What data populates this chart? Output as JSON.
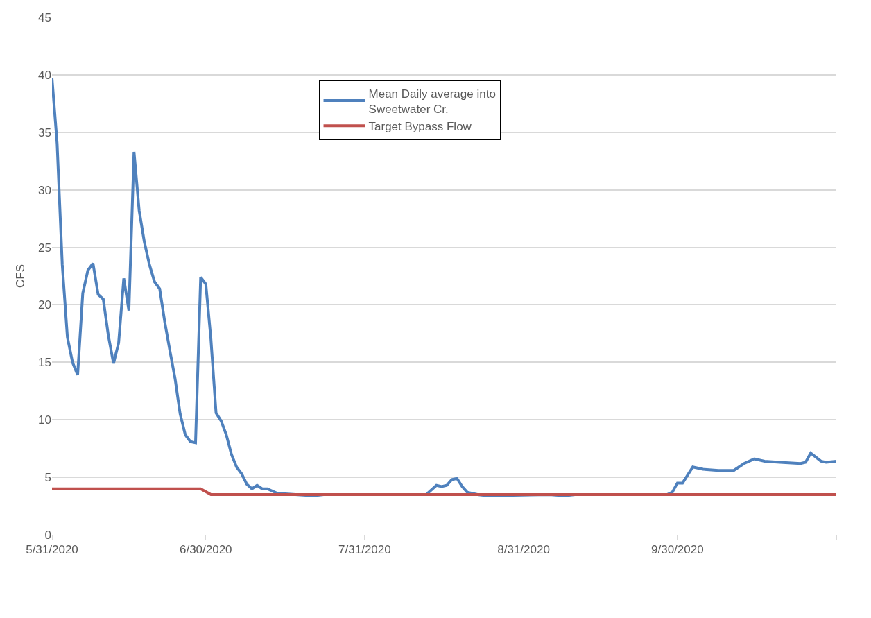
{
  "chart_data": {
    "type": "line",
    "ylabel": "CFS",
    "xlim": [
      "2020-05-31",
      "2020-10-31"
    ],
    "xticks": [
      {
        "value": "2020-05-31",
        "label": "5/31/2020"
      },
      {
        "value": "2020-06-30",
        "label": "6/30/2020"
      },
      {
        "value": "2020-07-31",
        "label": "7/31/2020"
      },
      {
        "value": "2020-08-31",
        "label": "8/31/2020"
      },
      {
        "value": "2020-09-30",
        "label": "9/30/2020"
      },
      {
        "value": "2020-10-31",
        "label": null
      }
    ],
    "ylim": [
      0,
      45
    ],
    "yticks": [
      0,
      5,
      10,
      15,
      20,
      25,
      30,
      35,
      40,
      45
    ],
    "grid": "y",
    "legend": "top",
    "marker": "none",
    "line_style": "solid",
    "series": [
      {
        "name": "Mean Daily average into Sweetwater Cr.",
        "color": "#4f81bd",
        "x": [
          "2020-05-31",
          "2020-06-01",
          "2020-06-02",
          "2020-06-03",
          "2020-06-04",
          "2020-06-05",
          "2020-06-06",
          "2020-06-07",
          "2020-06-08",
          "2020-06-09",
          "2020-06-10",
          "2020-06-11",
          "2020-06-12",
          "2020-06-13",
          "2020-06-14",
          "2020-06-15",
          "2020-06-16",
          "2020-06-17",
          "2020-06-18",
          "2020-06-19",
          "2020-06-20",
          "2020-06-21",
          "2020-06-22",
          "2020-06-23",
          "2020-06-24",
          "2020-06-25",
          "2020-06-26",
          "2020-06-27",
          "2020-06-28",
          "2020-06-29",
          "2020-06-30",
          "2020-07-01",
          "2020-07-02",
          "2020-07-03",
          "2020-07-04",
          "2020-07-05",
          "2020-07-06",
          "2020-07-07",
          "2020-07-08",
          "2020-07-09",
          "2020-07-10",
          "2020-07-11",
          "2020-07-12",
          "2020-07-13",
          "2020-07-14",
          "2020-07-18",
          "2020-07-21",
          "2020-07-23",
          "2020-08-12",
          "2020-08-14",
          "2020-08-15",
          "2020-08-16",
          "2020-08-17",
          "2020-08-18",
          "2020-08-19",
          "2020-08-20",
          "2020-08-22",
          "2020-08-24",
          "2020-08-26",
          "2020-08-28",
          "2020-09-05",
          "2020-09-08",
          "2020-09-10",
          "2020-09-28",
          "2020-09-29",
          "2020-09-30",
          "2020-10-01",
          "2020-10-03",
          "2020-10-05",
          "2020-10-08",
          "2020-10-11",
          "2020-10-13",
          "2020-10-15",
          "2020-10-17",
          "2020-10-20",
          "2020-10-24",
          "2020-10-25",
          "2020-10-26",
          "2020-10-28",
          "2020-10-29",
          "2020-10-31"
        ],
        "values": [
          39.7,
          34,
          23.5,
          17.2,
          15,
          13.9,
          21,
          23,
          23.6,
          20.9,
          20.5,
          17.3,
          14.9,
          16.7,
          22.3,
          19.5,
          33.3,
          28.2,
          25.5,
          23.5,
          22,
          21.4,
          18.5,
          16,
          13.6,
          10.5,
          8.7,
          8.1,
          8,
          22.4,
          21.8,
          17,
          10.6,
          9.9,
          8.7,
          7,
          5.9,
          5.3,
          4.4,
          4,
          4.3,
          4,
          4,
          3.8,
          3.6,
          null,
          3.4,
          3.5,
          3.5,
          4.3,
          4.2,
          4.3,
          4.8,
          4.9,
          4.2,
          3.7,
          3.5,
          3.4,
          null,
          null,
          3.5,
          3.4,
          3.5,
          3.5,
          3.7,
          4.5,
          4.5,
          5.9,
          5.7,
          5.6,
          5.6,
          6.2,
          6.6,
          6.4,
          6.3,
          6.2,
          6.3,
          7.1,
          6.4,
          6.3,
          6.4
        ]
      },
      {
        "name": "Target Bypass Flow",
        "color": "#c0504d",
        "x": [
          "2020-05-31",
          "2020-06-29",
          "2020-07-01",
          "2020-10-31"
        ],
        "values": [
          4,
          4,
          3.5,
          3.5
        ]
      }
    ]
  }
}
